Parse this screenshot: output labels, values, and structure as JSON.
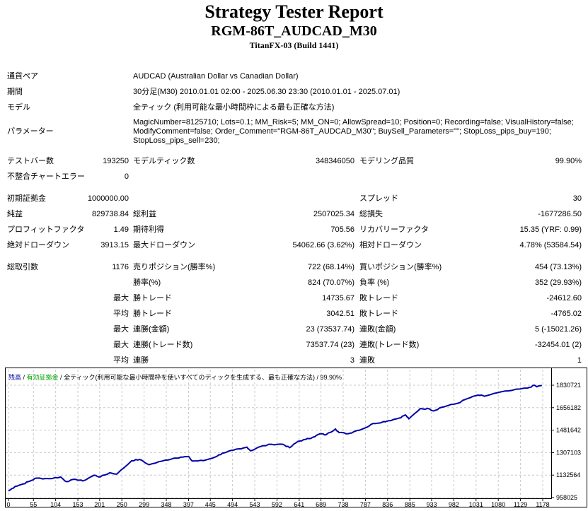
{
  "header": {
    "title": "Strategy Tester Report",
    "expert": "RGM-86T_AUDCAD_M30",
    "server": "TitanFX-03 (Build 1441)"
  },
  "info": [
    {
      "label": "通貨ペア",
      "value": "AUDCAD (Australian Dollar vs Canadian Dollar)"
    },
    {
      "label": "期間",
      "value": "30分足(M30) 2010.01.01 02:00 - 2025.06.30 23:30 (2010.01.01 - 2025.07.01)"
    },
    {
      "label": "モデル",
      "value": "全ティック (利用可能な最小時間枠による最も正確な方法)"
    }
  ],
  "parameters": {
    "label": "パラメーター",
    "value": "MagicNumber=8125710; Lots=0.1; MM_Risk=5; MM_ON=0; AllowSpread=10; Position=0; Recording=false; VisualHistory=false; ModifyComment=false; Order_Comment=\"RGM-86T_AUDCAD_M30\"; BuySell_Parameters=\"\"; StopLoss_pips_buy=190; StopLoss_pips_sell=230;"
  },
  "stats_groups": [
    [
      [
        "テストバー数",
        "193250",
        "モデルティック数",
        "348346050",
        "モデリング品質",
        "99.90%"
      ],
      [
        "不整合チャートエラー",
        "0",
        "",
        "",
        "",
        ""
      ]
    ],
    [
      [
        "初期証拠金",
        "1000000.00",
        "",
        "",
        "スプレッド",
        "30"
      ],
      [
        "純益",
        "829738.84",
        "総利益",
        "2507025.34",
        "総損失",
        "-1677286.50"
      ],
      [
        "プロフィットファクタ",
        "1.49",
        "期待利得",
        "705.56",
        "リカバリーファクタ",
        "15.35 (YRF: 0.99)"
      ],
      [
        "絶対ドローダウン",
        "3913.15",
        "最大ドローダウン",
        "54062.66 (3.62%)",
        "相対ドローダウン",
        "4.78% (53584.54)"
      ]
    ],
    [
      [
        "総取引数",
        "1176",
        "売りポジション(勝率%)",
        "722 (68.14%)",
        "買いポジション(勝率%)",
        "454 (73.13%)"
      ],
      [
        "",
        "",
        "勝率(%)",
        "824 (70.07%)",
        "負率 (%)",
        "352 (29.93%)"
      ],
      [
        "",
        "最大",
        "勝トレード",
        "14735.67",
        "敗トレード",
        "-24612.60"
      ],
      [
        "",
        "平均",
        "勝トレード",
        "3042.51",
        "敗トレード",
        "-4765.02"
      ],
      [
        "",
        "最大",
        "連勝(金額)",
        "23 (73537.74)",
        "連敗(金額)",
        "5 (-15021.26)"
      ],
      [
        "",
        "最大",
        "連勝(トレード数)",
        "73537.74 (23)",
        "連敗(トレード数)",
        "-32454.01 (2)"
      ],
      [
        "",
        "平均",
        "連勝",
        "3",
        "連敗",
        "1"
      ]
    ]
  ],
  "chart_data": {
    "type": "line",
    "legend": {
      "balance": "残高",
      "equity": "有効証拠金",
      "model": "全ティック(利用可能な最小時間枠を使いすべてのティックを生成する、最も正確な方法)",
      "quality": "99.90%",
      "separator": " / "
    },
    "colors": {
      "balance": "#0000a8",
      "equity": "#00a000",
      "grid": "#c8c8c8"
    },
    "grid": true,
    "xticks": [
      0,
      55,
      104,
      153,
      201,
      250,
      299,
      348,
      397,
      445,
      494,
      543,
      592,
      641,
      689,
      738,
      787,
      836,
      885,
      933,
      982,
      1031,
      1080,
      1129,
      1178
    ],
    "yticks": [
      958025,
      1132564,
      1307103,
      1481642,
      1656182,
      1830721
    ],
    "xlim": [
      0,
      1178
    ],
    "ylim": [
      958025,
      1830721
    ],
    "series": [
      {
        "name": "残高",
        "x": [
          0,
          15,
          32,
          48,
          61,
          90,
          115,
          127,
          148,
          164,
          189,
          202,
          223,
          239,
          272,
          289,
          310,
          339,
          364,
          380,
          397,
          405,
          430,
          455,
          472,
          497,
          513,
          526,
          534,
          555,
          580,
          605,
          620,
          638,
          655,
          671,
          688,
          700,
          721,
          729,
          750,
          763,
          787,
          804,
          825,
          837,
          862,
          875,
          883,
          908,
          929,
          937,
          954,
          970,
          991,
          1012,
          1036,
          1049,
          1078,
          1111,
          1145,
          1160,
          1165,
          1176
        ],
        "y": [
          1008900,
          1045300,
          1063500,
          1087000,
          1109000,
          1105000,
          1118000,
          1082000,
          1100000,
          1087000,
          1132000,
          1118000,
          1150000,
          1141000,
          1245000,
          1254000,
          1213000,
          1242000,
          1263000,
          1272000,
          1276000,
          1242000,
          1245000,
          1272000,
          1303000,
          1327000,
          1336000,
          1350000,
          1321000,
          1354000,
          1372000,
          1372000,
          1345000,
          1394000,
          1409000,
          1427000,
          1454000,
          1445000,
          1491000,
          1463000,
          1454000,
          1472000,
          1500000,
          1533000,
          1545000,
          1554000,
          1576000,
          1600000,
          1569000,
          1649000,
          1646000,
          1631000,
          1658000,
          1673000,
          1691000,
          1727000,
          1754000,
          1745000,
          1772000,
          1791000,
          1809000,
          1830000,
          1818000,
          1829739
        ]
      }
    ]
  }
}
